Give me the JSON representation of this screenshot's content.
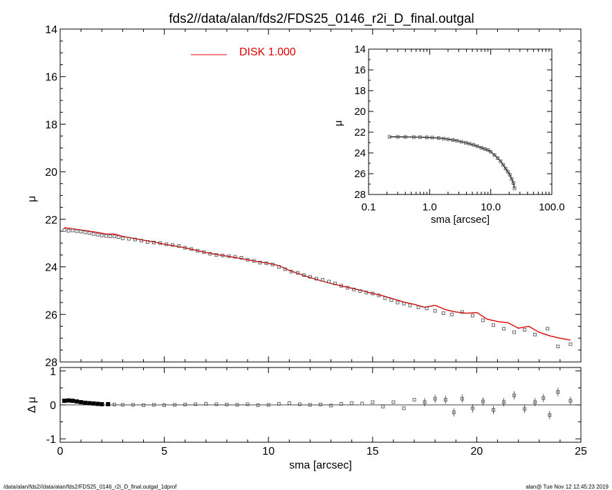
{
  "title": "fds2//data/alan/fds2/FDS25_0146_r2i_D_final.outgal",
  "footer_left": "/data/alan/fds2//data/alan/fds2/FDS25_0146_r2i_D_final.outgal_1dprof",
  "footer_right": "alan@  Tue Nov 12 12:45:23 2019",
  "colors": {
    "model": "#e00000",
    "data": "#000000",
    "marker": "#555555"
  },
  "chart_data": [
    {
      "id": "main",
      "type": "scatter",
      "xlabel": "sma [arcsec]",
      "ylabel": "μ",
      "xlim": [
        0,
        25
      ],
      "ylim": [
        28,
        14
      ],
      "xticks": [
        0,
        5,
        10,
        15,
        20,
        25
      ],
      "yticks": [
        14,
        16,
        18,
        20,
        22,
        24,
        26,
        28
      ],
      "legend": {
        "label": "DISK  1.000",
        "position": "top-center"
      },
      "series": [
        {
          "name": "DISK  1.000",
          "kind": "line",
          "x": [
            0.2,
            0.6,
            1.0,
            1.4,
            1.8,
            2.2,
            2.6,
            3.0,
            3.5,
            4.0,
            4.5,
            5.0,
            5.5,
            6.0,
            6.5,
            7.0,
            7.5,
            8.0,
            8.5,
            9.0,
            9.5,
            10.0,
            10.5,
            11.0,
            11.5,
            12.0,
            12.5,
            13.0,
            13.5,
            14.0,
            14.5,
            15.0,
            15.5,
            16.0,
            16.5,
            17.0,
            17.5,
            18.0,
            18.5,
            19.0,
            19.5,
            20.0,
            20.5,
            21.0,
            21.5,
            22.0,
            22.5,
            23.0,
            23.5,
            24.0,
            24.5
          ],
          "y": [
            22.35,
            22.4,
            22.45,
            22.5,
            22.55,
            22.62,
            22.62,
            22.72,
            22.8,
            22.88,
            22.95,
            23.05,
            23.12,
            23.2,
            23.3,
            23.4,
            23.48,
            23.55,
            23.62,
            23.7,
            23.78,
            23.85,
            23.95,
            24.15,
            24.3,
            24.45,
            24.58,
            24.7,
            24.8,
            24.9,
            25.0,
            25.12,
            25.22,
            25.35,
            25.48,
            25.58,
            25.7,
            25.62,
            25.8,
            25.9,
            25.95,
            25.92,
            26.2,
            26.3,
            26.35,
            26.58,
            26.5,
            26.75,
            26.9,
            27.0,
            27.08
          ]
        },
        {
          "name": "data",
          "kind": "markers",
          "x": [
            0.2,
            0.4,
            0.6,
            0.8,
            1.0,
            1.2,
            1.4,
            1.6,
            1.8,
            2.0,
            2.2,
            2.4,
            2.6,
            2.8,
            3.0,
            3.3,
            3.6,
            3.9,
            4.2,
            4.5,
            4.8,
            5.1,
            5.4,
            5.7,
            6.0,
            6.3,
            6.6,
            6.9,
            7.2,
            7.5,
            7.8,
            8.1,
            8.4,
            8.7,
            9.0,
            9.3,
            9.6,
            9.9,
            10.2,
            10.5,
            10.8,
            11.1,
            11.4,
            11.7,
            12.0,
            12.3,
            12.6,
            12.9,
            13.2,
            13.5,
            13.8,
            14.1,
            14.4,
            14.7,
            15.0,
            15.3,
            15.6,
            15.9,
            16.2,
            16.5,
            16.8,
            17.2,
            17.6,
            18.0,
            18.4,
            18.8,
            19.3,
            19.8,
            20.3,
            20.8,
            21.3,
            21.8,
            22.3,
            22.8,
            23.4,
            23.9,
            24.5
          ],
          "y": [
            22.45,
            22.48,
            22.47,
            22.5,
            22.52,
            22.55,
            22.58,
            22.62,
            22.65,
            22.68,
            22.7,
            22.72,
            22.72,
            22.75,
            22.8,
            22.82,
            22.85,
            22.9,
            22.95,
            22.98,
            23.0,
            23.05,
            23.08,
            23.12,
            23.2,
            23.25,
            23.32,
            23.38,
            23.45,
            23.5,
            23.52,
            23.55,
            23.58,
            23.62,
            23.7,
            23.75,
            23.82,
            23.85,
            23.9,
            24.0,
            24.1,
            24.2,
            24.25,
            24.35,
            24.42,
            24.5,
            24.55,
            24.62,
            24.7,
            24.8,
            24.88,
            24.95,
            25.02,
            25.08,
            25.12,
            25.2,
            25.32,
            25.4,
            25.5,
            25.55,
            25.62,
            25.7,
            25.75,
            25.85,
            25.95,
            26.0,
            25.9,
            26.05,
            26.25,
            26.45,
            26.6,
            26.75,
            26.65,
            26.85,
            26.6,
            27.35,
            27.25
          ]
        }
      ]
    },
    {
      "id": "residual",
      "type": "scatter",
      "xlabel": "sma [arcsec]",
      "ylabel": "Δ μ",
      "xlim": [
        0,
        25
      ],
      "ylim": [
        -1.1,
        1.1
      ],
      "yticks": [
        1,
        0,
        -1
      ],
      "series": [
        {
          "name": "Δ μ",
          "kind": "markers",
          "x": [
            0.2,
            0.4,
            0.6,
            0.8,
            1.0,
            1.2,
            1.4,
            1.6,
            1.8,
            2.0,
            2.3,
            2.6,
            3.0,
            3.5,
            4.0,
            4.5,
            5.0,
            5.5,
            6.0,
            6.5,
            7.0,
            7.5,
            8.0,
            8.5,
            9.0,
            9.5,
            10.0,
            10.5,
            11.0,
            11.5,
            12.0,
            12.5,
            13.0,
            13.5,
            14.0,
            14.5,
            15.0,
            15.5,
            16.0,
            16.5,
            17.0,
            17.5,
            18.0,
            18.5,
            18.9,
            19.3,
            19.8,
            20.3,
            20.8,
            21.3,
            21.8,
            22.3,
            22.8,
            23.2,
            23.5,
            23.9,
            24.5
          ],
          "y": [
            0.12,
            0.13,
            0.12,
            0.1,
            0.08,
            0.06,
            0.05,
            0.04,
            0.03,
            0.02,
            0.02,
            0.01,
            0.0,
            0.0,
            -0.01,
            0.0,
            -0.01,
            0.0,
            0.01,
            0.02,
            0.03,
            0.02,
            0.01,
            0.0,
            0.02,
            -0.01,
            0.0,
            0.03,
            0.05,
            0.02,
            0.0,
            0.01,
            -0.02,
            0.03,
            0.05,
            0.04,
            0.08,
            -0.05,
            0.08,
            -0.1,
            0.15,
            0.08,
            0.18,
            0.15,
            -0.22,
            0.18,
            -0.1,
            0.1,
            -0.15,
            0.08,
            0.28,
            -0.12,
            0.08,
            0.2,
            -0.3,
            0.38,
            0.12
          ]
        }
      ]
    },
    {
      "id": "inset",
      "type": "scatter",
      "xlabel": "sma [arcsec]",
      "ylabel": "μ",
      "xscale": "log",
      "xlim": [
        0.1,
        100
      ],
      "ylim": [
        28,
        14
      ],
      "xticks": [
        0.1,
        1.0,
        10.0,
        100.0
      ],
      "xticklabels": [
        "0.1",
        "1.0",
        "10.0",
        "100.0"
      ],
      "yticks": [
        14,
        16,
        18,
        20,
        22,
        24,
        26,
        28
      ],
      "series": [
        {
          "name": "data",
          "kind": "markers+line",
          "x": [
            0.22,
            0.3,
            0.4,
            0.55,
            0.7,
            0.9,
            1.1,
            1.4,
            1.7,
            2.0,
            2.4,
            2.8,
            3.3,
            3.9,
            4.5,
            5.2,
            6.0,
            7.0,
            8.0,
            9.0,
            10.0,
            11.5,
            13.0,
            14.5,
            16.0,
            17.5,
            19.0,
            20.5,
            22.0,
            23.5,
            24.5
          ],
          "y": [
            22.45,
            22.45,
            22.46,
            22.47,
            22.48,
            22.5,
            22.52,
            22.56,
            22.62,
            22.68,
            22.75,
            22.82,
            22.92,
            23.02,
            23.12,
            23.22,
            23.35,
            23.5,
            23.62,
            23.72,
            23.88,
            24.2,
            24.5,
            24.8,
            25.15,
            25.5,
            25.8,
            26.1,
            26.5,
            26.9,
            27.4
          ]
        }
      ]
    }
  ]
}
